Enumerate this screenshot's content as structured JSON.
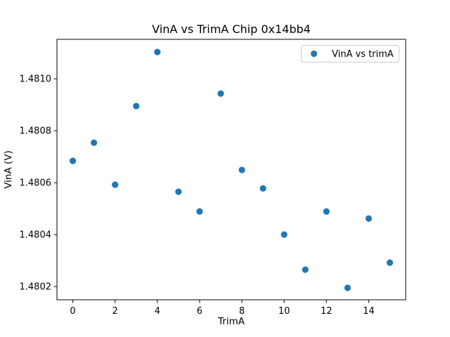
{
  "chart_data": {
    "type": "scatter",
    "title": "VinA vs TrimA Chip 0x14bb4",
    "xlabel": "TrimA",
    "ylabel": "VinA (V)",
    "legend": {
      "label": "VinA vs trimA",
      "position": "upper right"
    },
    "grid": false,
    "marker_color": "#1f77b4",
    "axis_color": "#000000",
    "legend_border_color": "#cccccc",
    "x": [
      0,
      1,
      2,
      3,
      4,
      5,
      6,
      7,
      8,
      9,
      10,
      11,
      12,
      13,
      14,
      15
    ],
    "y": [
      1.480684,
      1.480754,
      1.480592,
      1.480895,
      1.481103,
      1.480565,
      1.480489,
      1.480943,
      1.480649,
      1.480578,
      1.4804,
      1.480265,
      1.480489,
      1.480195,
      1.480462,
      1.480292
    ],
    "xlim": [
      -0.75,
      15.75
    ],
    "ylim": [
      1.480149,
      1.481152
    ],
    "xticks": [
      0,
      2,
      4,
      6,
      8,
      10,
      12,
      14
    ],
    "xtick_labels": [
      "0",
      "2",
      "4",
      "6",
      "8",
      "10",
      "12",
      "14"
    ],
    "yticks": [
      1.4802,
      1.4804,
      1.4806,
      1.4808,
      1.481
    ],
    "ytick_labels": [
      "1.4802",
      "1.4804",
      "1.4806",
      "1.4808",
      "1.4810"
    ]
  }
}
